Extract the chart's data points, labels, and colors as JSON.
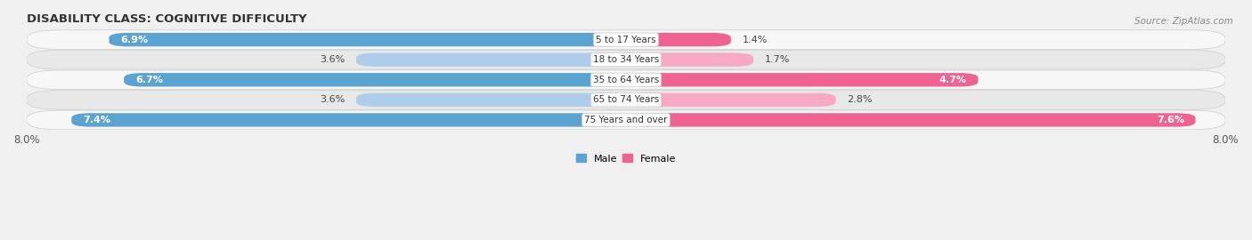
{
  "title": "DISABILITY CLASS: COGNITIVE DIFFICULTY",
  "source": "Source: ZipAtlas.com",
  "categories": [
    "5 to 17 Years",
    "18 to 34 Years",
    "35 to 64 Years",
    "65 to 74 Years",
    "75 Years and over"
  ],
  "male_values": [
    6.9,
    3.6,
    6.7,
    3.6,
    7.4
  ],
  "female_values": [
    1.4,
    1.7,
    4.7,
    2.8,
    7.6
  ],
  "male_color_strong": "#5ba3d0",
  "male_color_light": "#aecde8",
  "female_color_strong": "#f06292",
  "female_color_light": "#f7a8c4",
  "max_val": 8.0,
  "bar_height": 0.68,
  "row_bg_light": "#f7f7f7",
  "row_bg_dark": "#e8e8e8",
  "fig_bg": "#f0f0f0",
  "title_fontsize": 9.5,
  "label_fontsize": 8,
  "tick_fontsize": 8.5,
  "source_fontsize": 7.5
}
